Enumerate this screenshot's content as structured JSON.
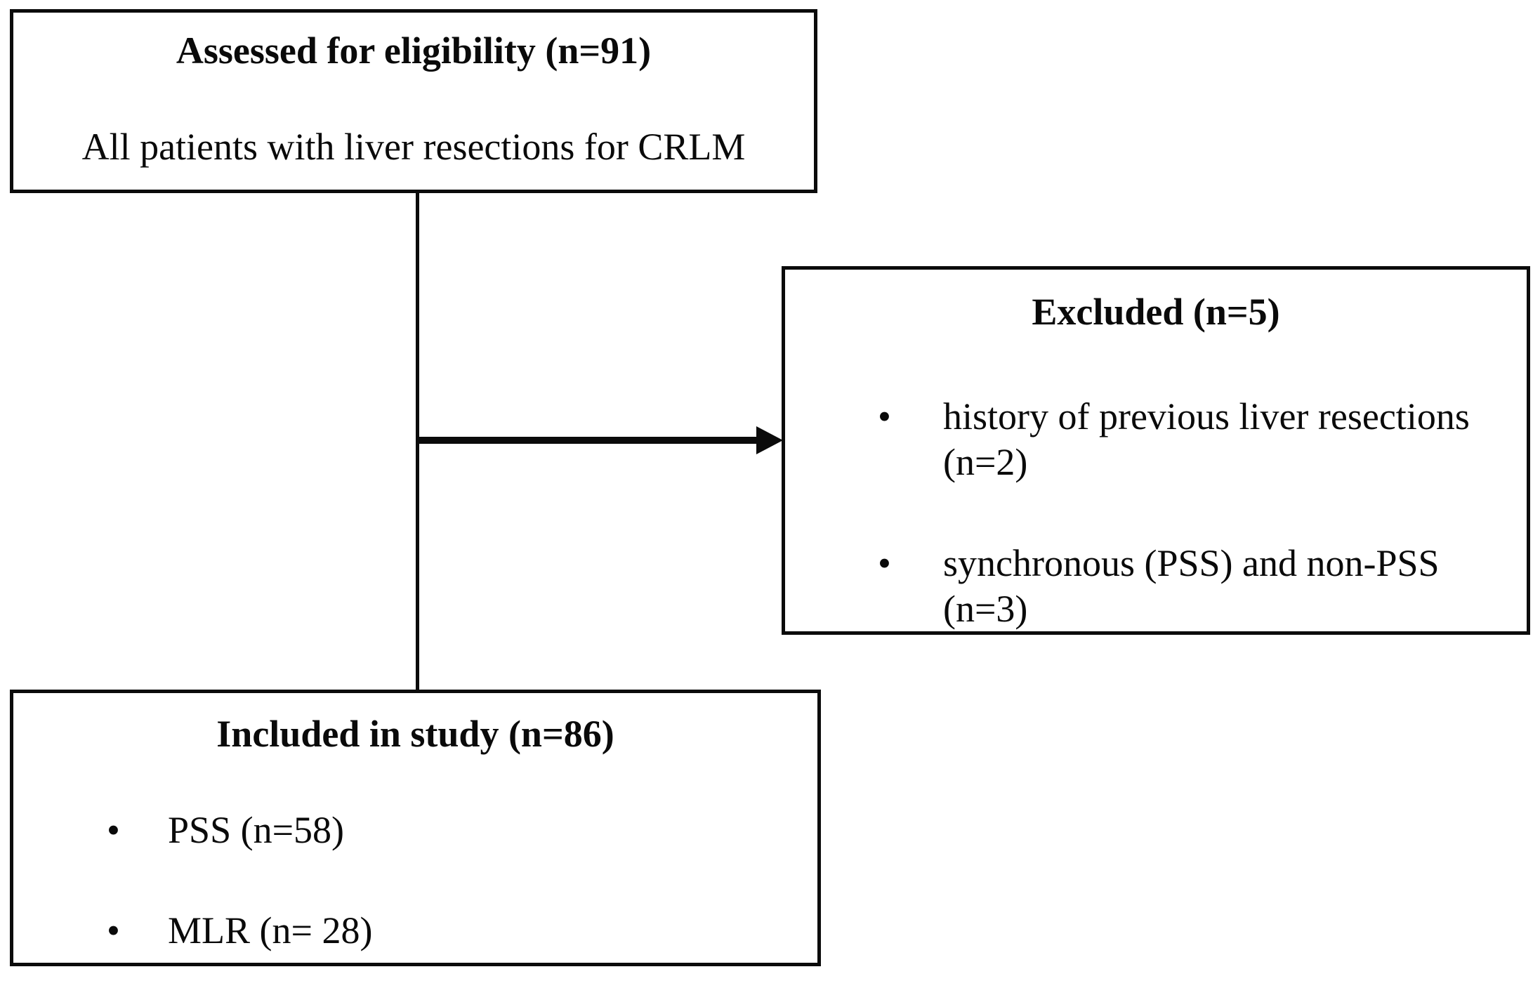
{
  "colors": {
    "background": "#ffffff",
    "ink": "#0b0b0b"
  },
  "icons": {
    "bullet": "•"
  },
  "boxes": {
    "eligibility": {
      "title": "Assessed for eligibility (n=91)",
      "subtitle": "All patients with liver resections for CRLM"
    },
    "excluded": {
      "title": "Excluded (n=5)",
      "bullets": [
        "history of previous liver resections (n=2)",
        "synchronous (PSS) and non-PSS (n=3)"
      ]
    },
    "included": {
      "title": "Included in study (n=86)",
      "bullets": [
        "PSS (n=58)",
        "MLR (n= 28)"
      ]
    }
  }
}
